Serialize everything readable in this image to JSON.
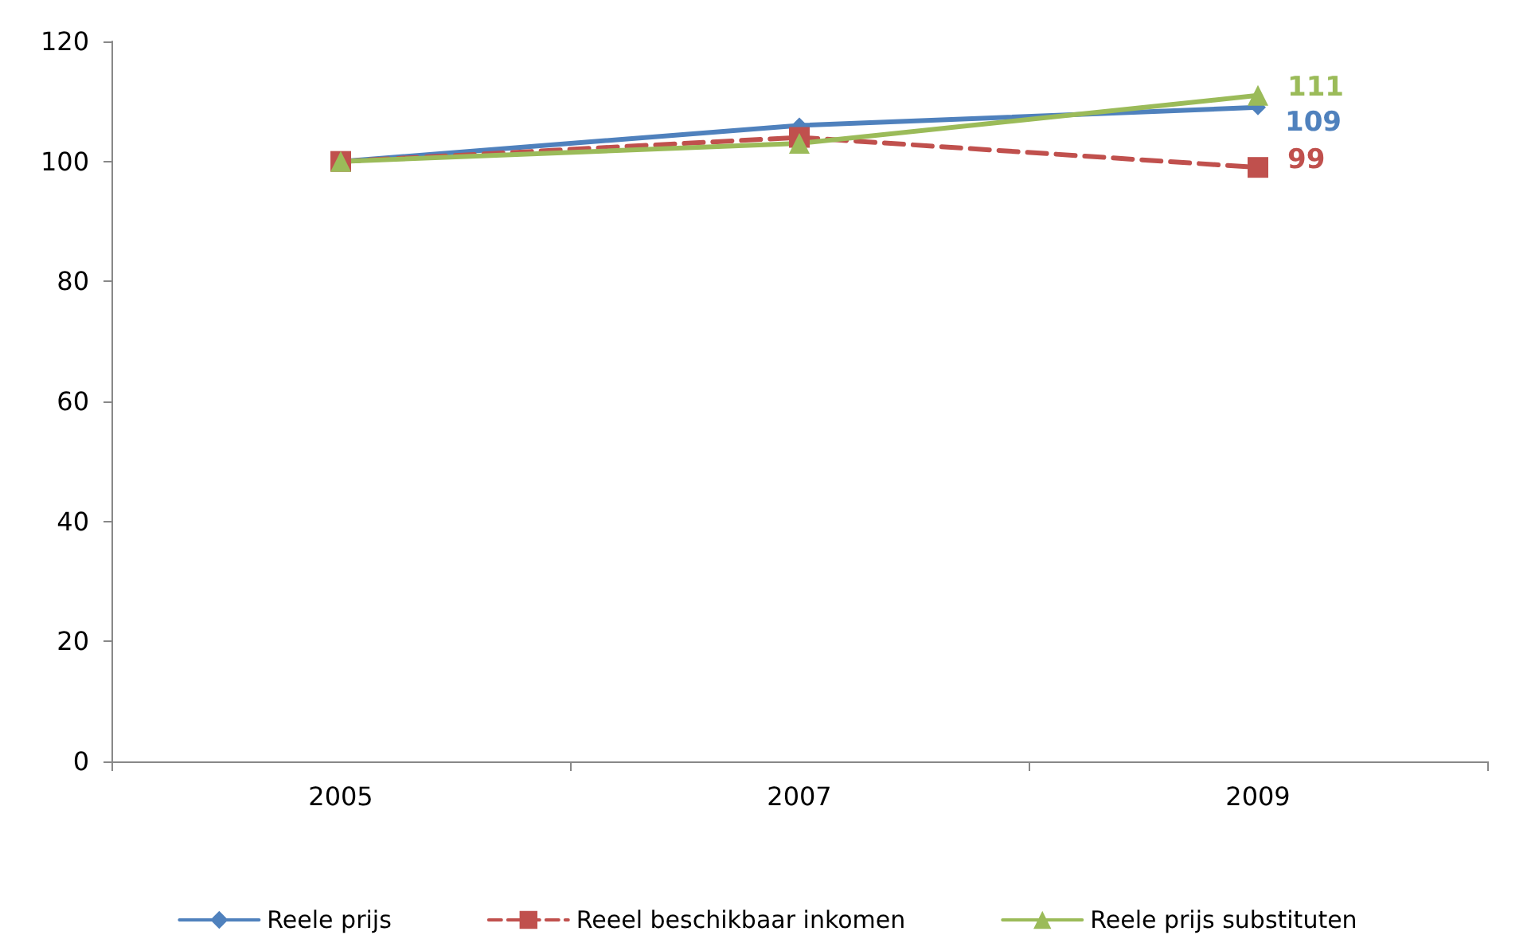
{
  "chart_data": {
    "type": "line",
    "categories": [
      "2005",
      "2007",
      "2009"
    ],
    "ylim": [
      0,
      120
    ],
    "yticks": [
      0,
      20,
      40,
      60,
      80,
      100,
      120
    ],
    "grid": false,
    "legend": "bottom",
    "series": [
      {
        "name": "Reele prijs",
        "color": "#4f81bd",
        "values": [
          100,
          106,
          109
        ],
        "marker": "diamond",
        "line_style": "solid",
        "value_labels": [
          null,
          null,
          "109"
        ]
      },
      {
        "name": "Reeel beschikbaar inkomen",
        "color": "#c0504d",
        "values": [
          100,
          104,
          99
        ],
        "marker": "square",
        "line_style": "dashed",
        "value_labels": [
          null,
          null,
          "99"
        ]
      },
      {
        "name": "Reele prijs substituten",
        "color": "#9bbb59",
        "values": [
          100,
          103,
          111
        ],
        "marker": "triangle",
        "line_style": "solid",
        "value_labels": [
          null,
          null,
          "111"
        ]
      }
    ]
  }
}
